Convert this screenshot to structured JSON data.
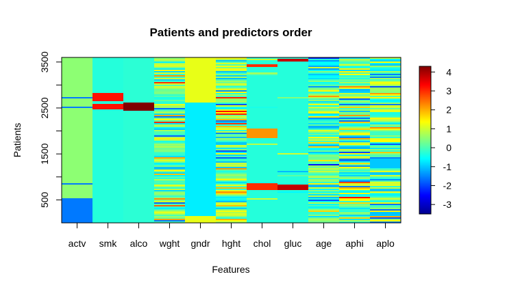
{
  "chart_data": {
    "type": "heatmap",
    "title": "Patients and predictors order",
    "xlabel": "Features",
    "ylabel": "Patients",
    "categories": [
      "actv",
      "smk",
      "alco",
      "wght",
      "gndr",
      "hght",
      "chol",
      "gluc",
      "age",
      "aphi",
      "aplo"
    ],
    "y_ticks": [
      "500",
      "1500",
      "2500",
      "3500"
    ],
    "ylim": [
      0,
      3500
    ],
    "colorbar": {
      "ticks": [
        "-3",
        "-2",
        "-1",
        "0",
        "1",
        "2",
        "3",
        "4"
      ],
      "range": [
        -3.5,
        4.3
      ],
      "palette": "jet",
      "colors": [
        "#00008F",
        "#0000FF",
        "#0080FF",
        "#00FFFF",
        "#80FF80",
        "#FFFF00",
        "#FF8000",
        "#FF0000",
        "#800000"
      ]
    },
    "column_profiles": {
      "actv": {
        "base": 0.5,
        "segments": [
          [
            0,
            550,
            -1.6
          ],
          [
            820,
            870,
            -1.6
          ],
          [
            2430,
            2450,
            -1.6
          ],
          [
            2500,
            2520,
            -1.6
          ],
          [
            2700,
            2730,
            -1.6
          ]
        ]
      },
      "smk": {
        "base": -0.3,
        "segments": [
          [
            2480,
            2580,
            3.2
          ],
          [
            2660,
            2820,
            3.2
          ]
        ]
      },
      "alco": {
        "base": -0.25,
        "segments": [
          [
            2450,
            2620,
            4.3
          ]
        ]
      },
      "wght": {
        "noise": "high"
      },
      "gndr": {
        "base": -0.7,
        "segments": [
          [
            0,
            150,
            1.2
          ],
          [
            2620,
            3600,
            1.2
          ]
        ]
      },
      "hght": {
        "noise": "high"
      },
      "chol": {
        "base": -0.3,
        "noise": "low",
        "segments": [
          [
            720,
            850,
            3.0
          ],
          [
            1850,
            2050,
            2.2
          ],
          [
            3400,
            3450,
            3.0
          ]
        ]
      },
      "gluc": {
        "base": -0.3,
        "noise": "low",
        "segments": [
          [
            700,
            820,
            3.8
          ],
          [
            3520,
            3580,
            3.8
          ]
        ]
      },
      "age": {
        "noise": "medium"
      },
      "aphi": {
        "noise": "high"
      },
      "aplo": {
        "noise": "high",
        "segments": [
          [
            1200,
            1400,
            -1.0
          ]
        ]
      }
    }
  }
}
